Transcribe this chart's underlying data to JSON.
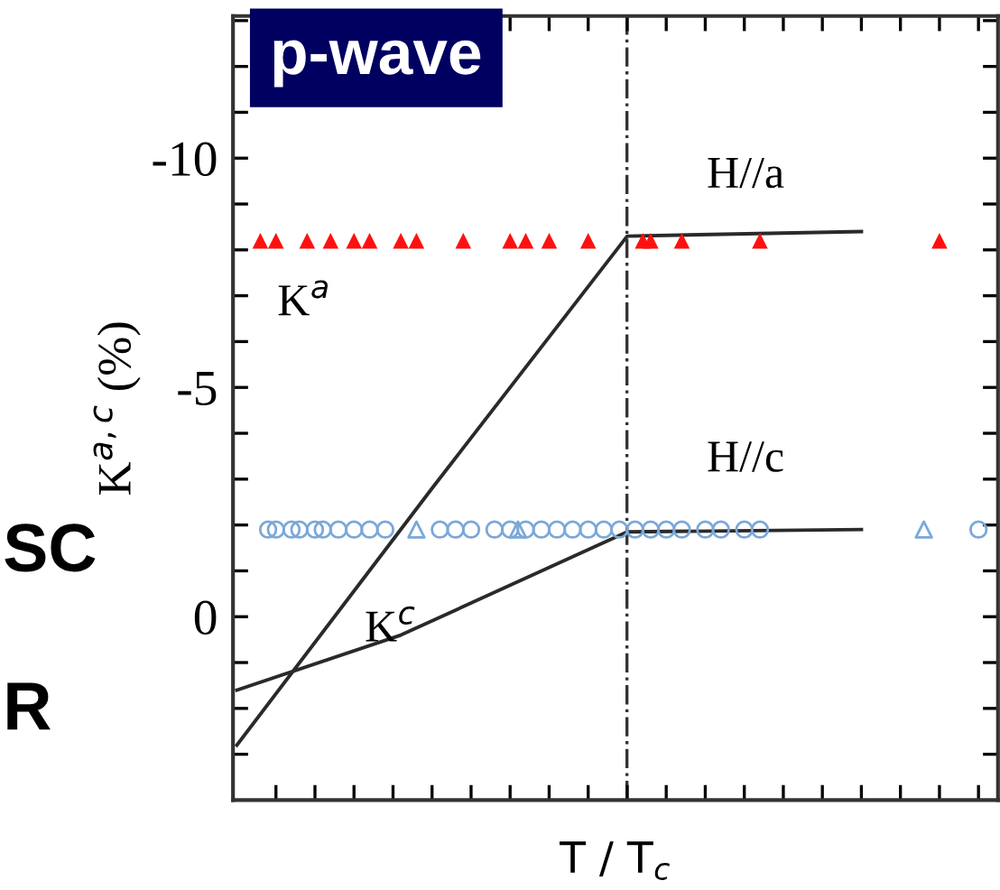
{
  "chart_data": {
    "type": "line",
    "ylabel": "K$^{a,c}$ (%)",
    "xlabel": "T / T$_{c}$",
    "categories": [
      null,
      null,
      null,
      null,
      null,
      null,
      null,
      null,
      null,
      null,
      null,
      null,
      null,
      null,
      null,
      null,
      null,
      null,
      null,
      null,
      null,
      null,
      null,
      null,
      null,
      null,
      null,
      null,
      null,
      null,
      null,
      null,
      null,
      null,
      null,
      null,
      null,
      null,
      null,
      null,
      null,
      null,
      null,
      null,
      null,
      null,
      null,
      null,
      null,
      null,
      null,
      null,
      null,
      null,
      null,
      null,
      null,
      null,
      null,
      null,
      null,
      null,
      null,
      null,
      null,
      null,
      null,
      null,
      null,
      null,
      null,
      null,
      null,
      null,
      null,
      null,
      null,
      null,
      null,
      null,
      null,
      null,
      null,
      null,
      null,
      null,
      null,
      null,
      null,
      null,
      null,
      null,
      null,
      null,
      null,
      null,
      null,
      null
    ],
    "ylim": [
      4.0,
      -13.1
    ],
    "yticks": [
      {
        "value": 3,
        "label": null
      },
      {
        "value": 2,
        "label": null
      },
      {
        "value": 1,
        "label": null
      },
      0,
      {
        "value": -1,
        "label": null
      },
      {
        "value": -2,
        "label": null
      },
      {
        "value": -3,
        "label": null
      },
      {
        "value": -4,
        "label": null
      },
      -5,
      {
        "value": -6,
        "label": null
      },
      {
        "value": -7,
        "label": null
      },
      {
        "value": -8,
        "label": null
      },
      {
        "value": -9,
        "label": null
      },
      -10,
      {
        "value": -11,
        "label": null
      },
      {
        "value": -12,
        "label": null
      },
      {
        "value": -13,
        "label": null
      }
    ],
    "tick_labels": "y",
    "marker": "none",
    "line_style": "solid",
    "series": [
      {
        "color": "#2a2a2a",
        "values": [
          2.8,
          null,
          null,
          null,
          null,
          null,
          null,
          null,
          null,
          null,
          null,
          null,
          null,
          null,
          null,
          null,
          null,
          null,
          null,
          null,
          null,
          null,
          null,
          null,
          null,
          -2.8,
          null,
          null,
          null,
          null,
          null,
          null,
          null,
          null,
          null,
          null,
          null,
          null,
          null,
          null,
          null,
          null,
          null,
          null,
          null,
          null,
          null,
          null,
          null,
          null,
          -8.3,
          null,
          null,
          null,
          null,
          null,
          null,
          null,
          null,
          null,
          null,
          null,
          null,
          null,
          null,
          null,
          null,
          null,
          null,
          null,
          null,
          null,
          null,
          null,
          null,
          null,
          null,
          null,
          null,
          null,
          -8.4,
          null,
          null,
          null,
          null,
          null,
          null,
          null,
          null,
          null,
          null,
          null,
          null,
          null,
          null,
          null,
          null,
          null
        ]
      },
      {
        "color": "#2a2a2a",
        "values": [
          1.6,
          null,
          null,
          null,
          null,
          null,
          null,
          null,
          null,
          null,
          null,
          null,
          null,
          null,
          null,
          null,
          null,
          null,
          null,
          null,
          null,
          0.4,
          null,
          null,
          null,
          null,
          null,
          null,
          null,
          null,
          null,
          null,
          null,
          null,
          null,
          null,
          null,
          null,
          null,
          null,
          null,
          null,
          null,
          null,
          null,
          null,
          null,
          null,
          null,
          null,
          -1.85,
          null,
          null,
          null,
          null,
          null,
          null,
          null,
          null,
          null,
          null,
          null,
          null,
          null,
          null,
          null,
          null,
          null,
          null,
          null,
          null,
          null,
          null,
          null,
          null,
          null,
          null,
          null,
          null,
          null,
          -1.9,
          null,
          null,
          null,
          null,
          null,
          null,
          null,
          null,
          null,
          null,
          null,
          null,
          null,
          null,
          null,
          null,
          null
        ]
      },
      {
        "type": "scatter",
        "color": "#ff1010",
        "marker": "triangle",
        "values": [
          null,
          null,
          null,
          -8.2,
          null,
          -8.2,
          null,
          null,
          null,
          -8.2,
          null,
          null,
          -8.2,
          null,
          null,
          -8.2,
          null,
          -8.2,
          null,
          null,
          null,
          -8.2,
          null,
          -8.2,
          null,
          null,
          null,
          null,
          null,
          -8.2,
          null,
          null,
          null,
          null,
          null,
          -8.2,
          null,
          -8.2,
          null,
          null,
          -8.2,
          null,
          null,
          null,
          null,
          -8.2,
          null,
          null,
          null,
          null,
          null,
          null,
          -8.2,
          -8.2,
          null,
          null,
          null,
          -8.2,
          null,
          null,
          null,
          null,
          null,
          null,
          null,
          null,
          null,
          -8.2,
          null,
          null,
          null,
          null,
          null,
          null,
          null,
          null,
          null,
          null,
          null,
          null,
          null,
          null,
          null,
          null,
          null,
          null,
          null,
          null,
          null,
          null,
          -8.2,
          null,
          null,
          null,
          null,
          null,
          null,
          null
        ]
      },
      {
        "type": "scatter",
        "color": "#7aa8d8",
        "marker": "circle",
        "values": [
          null,
          null,
          null,
          null,
          -1.9,
          -1.9,
          null,
          -1.9,
          -1.9,
          null,
          -1.9,
          -1.9,
          null,
          -1.9,
          null,
          -1.9,
          null,
          -1.9,
          null,
          -1.9,
          null,
          null,
          null,
          null,
          null,
          null,
          -1.9,
          null,
          -1.9,
          null,
          -1.9,
          null,
          null,
          -1.9,
          null,
          -1.9,
          null,
          -1.9,
          null,
          -1.9,
          null,
          -1.9,
          null,
          -1.9,
          null,
          -1.9,
          null,
          -1.9,
          null,
          -1.9,
          null,
          -1.9,
          null,
          -1.9,
          null,
          -1.9,
          null,
          -1.9,
          null,
          null,
          -1.9,
          null,
          -1.9,
          null,
          null,
          -1.9,
          null,
          -1.9,
          null,
          null,
          null,
          null,
          null,
          null,
          null,
          null,
          null,
          null,
          null,
          null,
          null,
          null,
          null,
          null,
          null,
          null,
          null,
          null,
          null,
          null,
          null,
          null,
          null,
          null,
          null,
          -1.9,
          null,
          null
        ]
      },
      {
        "type": "scatter",
        "color": "#7aa8d8",
        "marker": "triangle",
        "values": [
          null,
          null,
          null,
          null,
          null,
          null,
          null,
          null,
          null,
          null,
          null,
          null,
          null,
          null,
          null,
          null,
          null,
          null,
          null,
          null,
          null,
          null,
          null,
          -1.9,
          null,
          null,
          null,
          null,
          null,
          null,
          null,
          null,
          null,
          null,
          null,
          null,
          -1.9,
          null,
          null,
          null,
          null,
          null,
          null,
          null,
          null,
          null,
          null,
          null,
          null,
          null,
          null,
          null,
          null,
          null,
          null,
          null,
          null,
          null,
          null,
          null,
          null,
          null,
          null,
          null,
          null,
          null,
          null,
          null,
          null,
          null,
          null,
          null,
          null,
          null,
          null,
          null,
          null,
          null,
          null,
          null,
          null,
          null,
          null,
          null,
          null,
          null,
          null,
          null,
          -1.9,
          null,
          null,
          null,
          null,
          null,
          null,
          null,
          null,
          null
        ]
      }
    ],
    "annotations": [
      "p-wave",
      "SC",
      "R",
      "H//a",
      "H//c",
      "K$^{a}$",
      "K$^{c}$"
    ]
  }
}
